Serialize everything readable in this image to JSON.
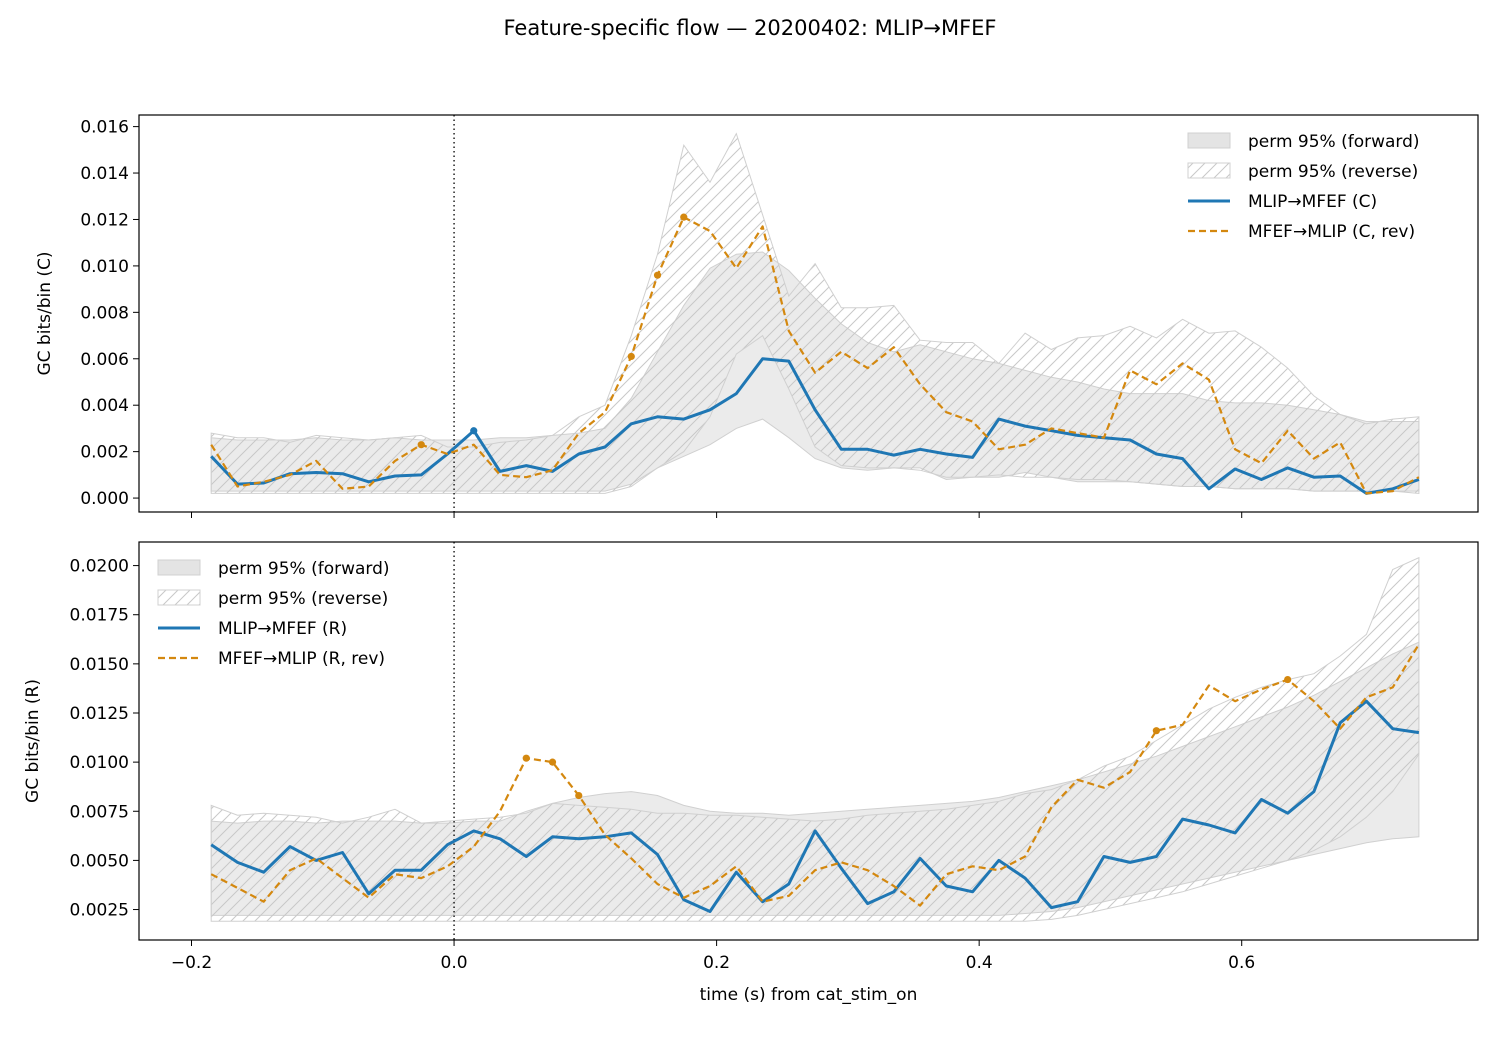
{
  "figure": {
    "title": "Feature-specific flow — 20200402: MLIP→MFEF"
  },
  "colors": {
    "forward": "#1f77b4",
    "reverse": "#d4880f",
    "band_fill": "#e4e4e4",
    "band_edge": "#d0d0d0",
    "hatch": "#c8c8c8"
  },
  "chart_data": [
    {
      "type": "line",
      "panel": "top",
      "title": "",
      "xlabel": "",
      "ylabel": "GC bits/bin (C)",
      "xlim": [
        -0.24,
        0.78
      ],
      "ylim": [
        -0.0006,
        0.0165
      ],
      "xticks": [
        -0.2,
        0.0,
        0.2,
        0.4,
        0.6
      ],
      "xticklabels": [],
      "yticks": [
        0.0,
        0.002,
        0.004,
        0.006,
        0.008,
        0.01,
        0.012,
        0.014,
        0.016
      ],
      "yticklabels": [
        "0.000",
        "0.002",
        "0.004",
        "0.006",
        "0.008",
        "0.010",
        "0.012",
        "0.014",
        "0.016"
      ],
      "vline": 0.0,
      "legend_position": "top-right",
      "x": [
        -0.185,
        -0.165,
        -0.145,
        -0.125,
        -0.105,
        -0.085,
        -0.065,
        -0.045,
        -0.025,
        -0.005,
        0.015,
        0.035,
        0.055,
        0.075,
        0.095,
        0.115,
        0.135,
        0.155,
        0.175,
        0.195,
        0.215,
        0.235,
        0.255,
        0.275,
        0.295,
        0.315,
        0.335,
        0.355,
        0.375,
        0.395,
        0.415,
        0.435,
        0.455,
        0.475,
        0.495,
        0.515,
        0.535,
        0.555,
        0.575,
        0.595,
        0.615,
        0.635,
        0.655,
        0.675,
        0.695,
        0.715,
        0.735
      ],
      "series": [
        {
          "name": "MLIP→MFEF (C)",
          "style": "solid",
          "color": "#1f77b4",
          "values": [
            0.0018,
            0.0006,
            0.00065,
            0.00105,
            0.0011,
            0.00105,
            0.0007,
            0.00095,
            0.001,
            0.0019,
            0.0029,
            0.00115,
            0.0014,
            0.00115,
            0.0019,
            0.0022,
            0.0032,
            0.0035,
            0.0034,
            0.0038,
            0.0045,
            0.006,
            0.0059,
            0.0038,
            0.0021,
            0.0021,
            0.00185,
            0.0021,
            0.0019,
            0.00175,
            0.0034,
            0.0031,
            0.0029,
            0.0027,
            0.0026,
            0.0025,
            0.0019,
            0.0017,
            0.0004,
            0.00125,
            0.0008,
            0.0013,
            0.0009,
            0.00095,
            0.0002,
            0.0004,
            0.0008
          ],
          "markers": [
            0.015
          ]
        },
        {
          "name": "MFEF→MLIP (C, rev)",
          "style": "dashed",
          "color": "#d4880f",
          "values": [
            0.0023,
            0.0005,
            0.0007,
            0.001,
            0.0016,
            0.0004,
            0.0005,
            0.0016,
            0.0023,
            0.0019,
            0.0023,
            0.001,
            0.0009,
            0.0012,
            0.0028,
            0.0037,
            0.0061,
            0.0096,
            0.0121,
            0.0115,
            0.0099,
            0.0117,
            0.0072,
            0.0054,
            0.0063,
            0.0056,
            0.0065,
            0.0049,
            0.0037,
            0.0033,
            0.0021,
            0.0023,
            0.003,
            0.0028,
            0.0026,
            0.0055,
            0.0049,
            0.0058,
            0.0051,
            0.0021,
            0.0015,
            0.0029,
            0.0017,
            0.0024,
            0.0002,
            0.0003,
            0.0009
          ],
          "markers": [
            -0.025,
            0.135,
            0.155,
            0.175
          ]
        }
      ],
      "bands": [
        {
          "name": "perm 95% (forward)",
          "kind": "filled",
          "lower": [
            0.0003,
            0.0003,
            0.0003,
            0.0003,
            0.0003,
            0.0003,
            0.0003,
            0.0003,
            0.0003,
            0.0003,
            0.0003,
            0.0003,
            0.0003,
            0.0003,
            0.0003,
            0.0003,
            0.0006,
            0.0013,
            0.0018,
            0.0023,
            0.003,
            0.0034,
            0.0026,
            0.0017,
            0.0013,
            0.0012,
            0.0013,
            0.0013,
            0.0008,
            0.0009,
            0.0009,
            0.0011,
            0.0009,
            0.0007,
            0.0007,
            0.0007,
            0.0006,
            0.0005,
            0.0005,
            0.0004,
            0.0004,
            0.0004,
            0.0003,
            0.0003,
            0.0003,
            0.0003,
            0.0003
          ],
          "upper": [
            0.0026,
            0.0025,
            0.0025,
            0.0025,
            0.0026,
            0.0025,
            0.0025,
            0.0026,
            0.0025,
            0.0025,
            0.0025,
            0.0026,
            0.0026,
            0.0027,
            0.0028,
            0.003,
            0.0043,
            0.0063,
            0.0083,
            0.0099,
            0.0105,
            0.0106,
            0.0098,
            0.0086,
            0.0075,
            0.0067,
            0.0063,
            0.0066,
            0.0063,
            0.006,
            0.0058,
            0.0055,
            0.0052,
            0.005,
            0.0047,
            0.0045,
            0.0045,
            0.0045,
            0.0042,
            0.0041,
            0.0041,
            0.004,
            0.0038,
            0.0036,
            0.0033,
            0.0033,
            0.0033
          ]
        },
        {
          "name": "perm 95% (reverse)",
          "kind": "hatched",
          "lower": [
            0.0002,
            0.0002,
            0.0002,
            0.0002,
            0.0002,
            0.0002,
            0.0002,
            0.0002,
            0.0002,
            0.0002,
            0.0002,
            0.0002,
            0.0002,
            0.0002,
            0.0002,
            0.0002,
            0.0005,
            0.0013,
            0.002,
            0.0035,
            0.0062,
            0.007,
            0.0047,
            0.0022,
            0.0014,
            0.0013,
            0.0013,
            0.0012,
            0.0009,
            0.0009,
            0.001,
            0.0009,
            0.0009,
            0.0008,
            0.0008,
            0.0007,
            0.0006,
            0.0005,
            0.0005,
            0.0004,
            0.0004,
            0.0004,
            0.0003,
            0.0003,
            0.0003,
            0.0003,
            0.0002
          ],
          "upper": [
            0.0028,
            0.0026,
            0.0026,
            0.0024,
            0.0027,
            0.0026,
            0.0025,
            0.0026,
            0.0027,
            0.0022,
            0.0022,
            0.0024,
            0.0025,
            0.0027,
            0.0035,
            0.004,
            0.007,
            0.0105,
            0.0152,
            0.0136,
            0.0157,
            0.0122,
            0.0087,
            0.0101,
            0.0082,
            0.0082,
            0.0083,
            0.0068,
            0.0067,
            0.0067,
            0.0058,
            0.0071,
            0.0064,
            0.0069,
            0.007,
            0.0074,
            0.0069,
            0.0077,
            0.0071,
            0.0072,
            0.0065,
            0.0056,
            0.0044,
            0.0036,
            0.0032,
            0.0034,
            0.0035
          ]
        }
      ],
      "legend": [
        "perm 95% (forward)",
        "perm 95% (reverse)",
        "MLIP→MFEF (C)",
        "MFEF→MLIP (C, rev)"
      ]
    },
    {
      "type": "line",
      "panel": "bottom",
      "title": "",
      "xlabel": "time (s) from cat_stim_on",
      "ylabel": "GC bits/bin (R)",
      "xlim": [
        -0.24,
        0.78
      ],
      "ylim": [
        0.00095,
        0.0212
      ],
      "xticks": [
        -0.2,
        0.0,
        0.2,
        0.4,
        0.6
      ],
      "xticklabels": [
        "−0.2",
        "0.0",
        "0.2",
        "0.4",
        "0.6"
      ],
      "yticks": [
        0.0025,
        0.005,
        0.0075,
        0.01,
        0.0125,
        0.015,
        0.0175,
        0.02
      ],
      "yticklabels": [
        "0.0025",
        "0.0050",
        "0.0075",
        "0.0100",
        "0.0125",
        "0.0150",
        "0.0175",
        "0.0200"
      ],
      "vline": 0.0,
      "legend_position": "top-left",
      "x": [
        -0.185,
        -0.165,
        -0.145,
        -0.125,
        -0.105,
        -0.085,
        -0.065,
        -0.045,
        -0.025,
        -0.005,
        0.015,
        0.035,
        0.055,
        0.075,
        0.095,
        0.115,
        0.135,
        0.155,
        0.175,
        0.195,
        0.215,
        0.235,
        0.255,
        0.275,
        0.295,
        0.315,
        0.335,
        0.355,
        0.375,
        0.395,
        0.415,
        0.435,
        0.455,
        0.475,
        0.495,
        0.515,
        0.535,
        0.555,
        0.575,
        0.595,
        0.615,
        0.635,
        0.655,
        0.675,
        0.695,
        0.715,
        0.735
      ],
      "series": [
        {
          "name": "MLIP→MFEF (R)",
          "style": "solid",
          "color": "#1f77b4",
          "values": [
            0.0058,
            0.0049,
            0.0044,
            0.0057,
            0.005,
            0.0054,
            0.0033,
            0.0045,
            0.0045,
            0.0058,
            0.0065,
            0.0061,
            0.0052,
            0.0062,
            0.0061,
            0.0062,
            0.0064,
            0.0053,
            0.003,
            0.0024,
            0.0044,
            0.0029,
            0.0038,
            0.0065,
            0.0046,
            0.0028,
            0.0034,
            0.0051,
            0.0037,
            0.0034,
            0.005,
            0.0041,
            0.0026,
            0.0029,
            0.0052,
            0.0049,
            0.0052,
            0.0071,
            0.0068,
            0.0064,
            0.0081,
            0.0074,
            0.0085,
            0.012,
            0.0131,
            0.0117,
            0.0115
          ],
          "markers": []
        },
        {
          "name": "MFEF→MLIP (R, rev)",
          "style": "dashed",
          "color": "#d4880f",
          "values": [
            0.0043,
            0.0036,
            0.0029,
            0.0045,
            0.0051,
            0.0041,
            0.0031,
            0.0043,
            0.0041,
            0.0047,
            0.0057,
            0.0075,
            0.0102,
            0.01,
            0.0083,
            0.0063,
            0.0051,
            0.0038,
            0.0031,
            0.0037,
            0.0047,
            0.0029,
            0.0032,
            0.0045,
            0.0049,
            0.0045,
            0.0037,
            0.0027,
            0.0043,
            0.0047,
            0.0045,
            0.0052,
            0.0077,
            0.0091,
            0.0087,
            0.0095,
            0.0116,
            0.0119,
            0.0139,
            0.0131,
            0.0137,
            0.0142,
            0.0131,
            0.0117,
            0.0133,
            0.0138,
            0.016
          ],
          "markers": [
            0.055,
            0.075,
            0.095,
            0.535,
            0.635
          ]
        }
      ],
      "bands": [
        {
          "name": "perm 95% (forward)",
          "kind": "filled",
          "lower": [
            0.0022,
            0.0022,
            0.0022,
            0.0022,
            0.0022,
            0.0022,
            0.0022,
            0.0022,
            0.0022,
            0.0022,
            0.0022,
            0.0022,
            0.0022,
            0.0022,
            0.0022,
            0.0022,
            0.0022,
            0.0022,
            0.0022,
            0.0022,
            0.0022,
            0.0022,
            0.0022,
            0.0022,
            0.0022,
            0.0022,
            0.0022,
            0.0022,
            0.0022,
            0.0022,
            0.0022,
            0.0023,
            0.0024,
            0.0026,
            0.0029,
            0.0032,
            0.0035,
            0.0038,
            0.0041,
            0.0044,
            0.0047,
            0.005,
            0.0053,
            0.0056,
            0.0059,
            0.0061,
            0.0062
          ],
          "upper": [
            0.007,
            0.0069,
            0.007,
            0.007,
            0.0069,
            0.007,
            0.007,
            0.007,
            0.0069,
            0.0069,
            0.007,
            0.007,
            0.0075,
            0.0079,
            0.0082,
            0.0084,
            0.0085,
            0.0083,
            0.0078,
            0.0075,
            0.0074,
            0.0074,
            0.0073,
            0.0074,
            0.0075,
            0.0076,
            0.0077,
            0.0078,
            0.0079,
            0.008,
            0.0082,
            0.0085,
            0.0088,
            0.0091,
            0.0095,
            0.0099,
            0.0103,
            0.0108,
            0.0113,
            0.0118,
            0.0123,
            0.0128,
            0.0134,
            0.0141,
            0.0148,
            0.0155,
            0.0161
          ]
        },
        {
          "name": "perm 95% (reverse)",
          "kind": "hatched",
          "lower": [
            0.0019,
            0.0019,
            0.0019,
            0.0019,
            0.0019,
            0.0019,
            0.0019,
            0.0019,
            0.0019,
            0.0019,
            0.0019,
            0.0019,
            0.0019,
            0.0019,
            0.0019,
            0.0019,
            0.0019,
            0.0019,
            0.0019,
            0.0019,
            0.0019,
            0.0019,
            0.0019,
            0.0019,
            0.0019,
            0.0019,
            0.0019,
            0.0019,
            0.0019,
            0.0019,
            0.0019,
            0.0019,
            0.002,
            0.0022,
            0.0025,
            0.0028,
            0.0031,
            0.0034,
            0.0038,
            0.0042,
            0.0046,
            0.005,
            0.0055,
            0.0062,
            0.0072,
            0.0085,
            0.0104
          ],
          "upper": [
            0.0078,
            0.0073,
            0.0074,
            0.0073,
            0.0072,
            0.0069,
            0.0072,
            0.0076,
            0.0069,
            0.007,
            0.0071,
            0.0072,
            0.0074,
            0.0079,
            0.0078,
            0.0077,
            0.0076,
            0.0074,
            0.0074,
            0.0073,
            0.0073,
            0.0072,
            0.0071,
            0.007,
            0.0071,
            0.0073,
            0.0074,
            0.0075,
            0.0076,
            0.0078,
            0.008,
            0.0084,
            0.0086,
            0.0091,
            0.0098,
            0.0103,
            0.0111,
            0.0119,
            0.0127,
            0.0133,
            0.0138,
            0.0142,
            0.0145,
            0.0154,
            0.0165,
            0.0198,
            0.0204
          ]
        }
      ],
      "legend": [
        "perm 95% (forward)",
        "perm 95% (reverse)",
        "MLIP→MFEF (R)",
        "MFEF→MLIP (R, rev)"
      ]
    }
  ]
}
